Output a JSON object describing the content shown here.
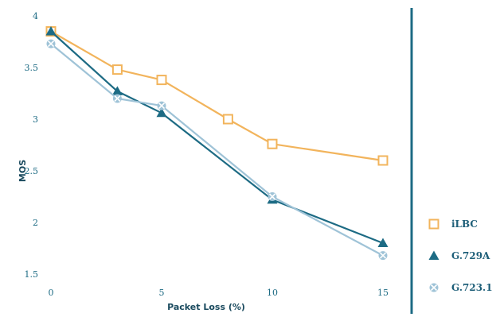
{
  "chart_data": {
    "type": "line",
    "xlabel": "Packet Loss (%)",
    "ylabel": "MOS",
    "xlim": [
      0,
      15
    ],
    "ylim": [
      1.5,
      4
    ],
    "x_ticks": [
      0,
      5,
      10,
      15
    ],
    "y_ticks": [
      1.5,
      2,
      2.5,
      3,
      3.5,
      4
    ],
    "grid": false,
    "legend_position": "right",
    "series": [
      {
        "name": "iLBC",
        "color": "#f2b45c",
        "marker": "square",
        "x": [
          0,
          3,
          5,
          8,
          10,
          15
        ],
        "y": [
          3.85,
          3.48,
          3.38,
          3.0,
          2.76,
          2.6
        ]
      },
      {
        "name": "G.729A",
        "color": "#1d6b84",
        "marker": "triangle",
        "x": [
          0,
          3,
          5,
          10,
          15
        ],
        "y": [
          3.85,
          3.27,
          3.06,
          2.22,
          1.8
        ]
      },
      {
        "name": "G.723.1",
        "color": "#9fc3d7",
        "marker": "cross",
        "x": [
          0,
          3,
          5,
          10,
          15
        ],
        "y": [
          3.73,
          3.2,
          3.13,
          2.25,
          1.68
        ]
      }
    ]
  }
}
